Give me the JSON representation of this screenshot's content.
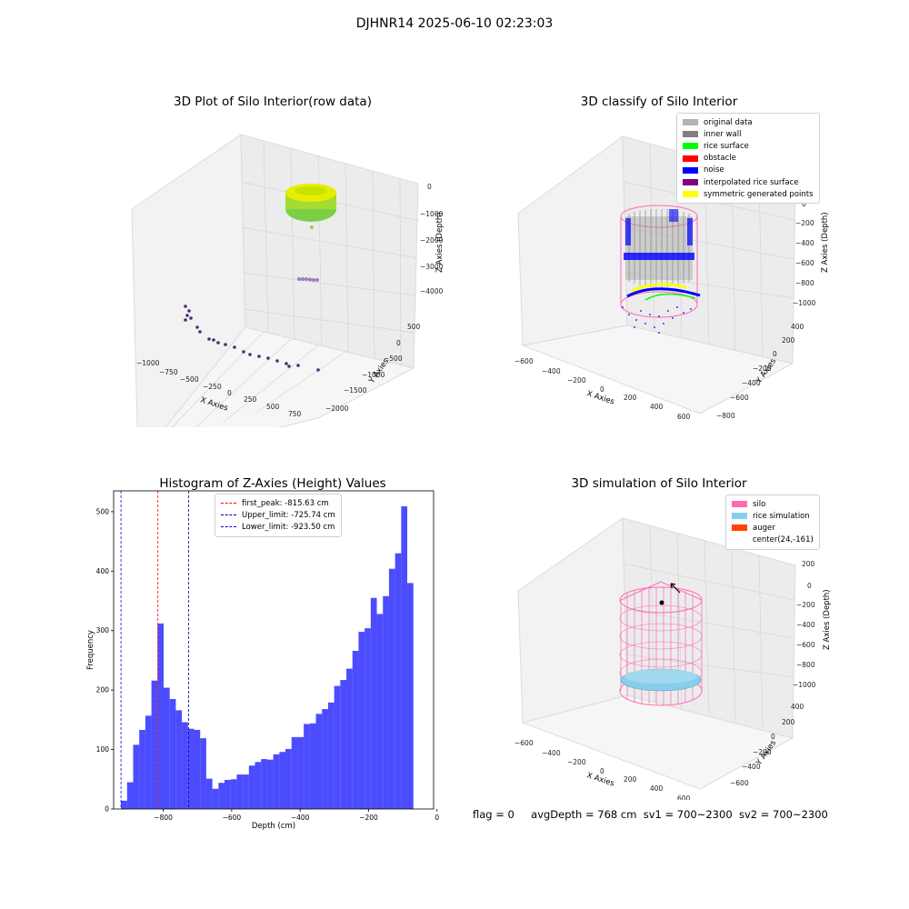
{
  "figure": {
    "suptitle": "DJHNR14 2025-06-10 02:23:03",
    "status": {
      "flag": "flag = 0",
      "avg_depth": "avgDepth = 768 cm",
      "sv1": "sv1 = 700~2300",
      "sv2": "sv2 = 700~2300"
    }
  },
  "panels": {
    "raw": {
      "title": "3D Plot of Silo Interior(row data)",
      "xlabel": "X Axies",
      "ylabel": "Y Axies",
      "zlabel": "Z Axies (Depth)",
      "xticks": [
        "−1000",
        "−750",
        "−500",
        "−250",
        "0",
        "250",
        "500",
        "750"
      ],
      "yticks": [
        "500",
        "0",
        "−500",
        "−1000",
        "−1500",
        "−2000"
      ],
      "zticks": [
        "0",
        "−1000",
        "−2000",
        "−3000",
        "−4000"
      ]
    },
    "classify": {
      "title": "3D classify of Silo Interior",
      "xlabel": "X Axies",
      "ylabel": "Y Axies",
      "zlabel": "Z Axies (Depth)",
      "xticks": [
        "−600",
        "−400",
        "−200",
        "0",
        "200",
        "400",
        "600"
      ],
      "yticks": [
        "400",
        "200",
        "0",
        "−200",
        "−400",
        "−600",
        "−800"
      ],
      "zticks": [
        "200",
        "0",
        "−200",
        "−400",
        "−600",
        "−800",
        "−1000"
      ],
      "legend": [
        {
          "label": "original data",
          "color": "#b3b3b3"
        },
        {
          "label": "inner wall",
          "color": "#808080"
        },
        {
          "label": "rice surface",
          "color": "#00ff00"
        },
        {
          "label": "obstacle",
          "color": "#ff0000"
        },
        {
          "label": "noise",
          "color": "#0000ff"
        },
        {
          "label": "interpolated rice surface",
          "color": "#800080"
        },
        {
          "label": "symmetric generated points",
          "color": "#ffff00"
        }
      ]
    },
    "simulation": {
      "title": "3D simulation of Silo Interior",
      "xlabel": "X Axies",
      "ylabel": "Y Axies",
      "zlabel": "Z Axies (Depth)",
      "xticks": [
        "−600",
        "−400",
        "−200",
        "0",
        "200",
        "400",
        "600"
      ],
      "yticks": [
        "400",
        "200",
        "0",
        "−200",
        "−400",
        "−600"
      ],
      "zticks": [
        "200",
        "0",
        "−200",
        "−400",
        "−600",
        "−800",
        "−1000"
      ],
      "legend": [
        {
          "label": "silo",
          "color": "#ff69b4"
        },
        {
          "label": "rice simulation",
          "color": "#87ceeb"
        },
        {
          "label": "auger",
          "color": "#ff4500"
        },
        {
          "label": "center(24,-161)",
          "color": ""
        }
      ]
    },
    "histogram": {
      "legend": [
        {
          "label": "first_peak: -815.63 cm",
          "color": "#ff0000"
        },
        {
          "label": "Upper_limit: -725.74 cm",
          "color": "#00008b"
        },
        {
          "label": "Lower_limit: -923.50 cm",
          "color": "#0000ff"
        }
      ]
    }
  },
  "chart_data": [
    {
      "type": "bar",
      "title": "Histogram of Z-Axies (Height) Values",
      "xlabel": "Depth (cm)",
      "ylabel": "Frequency",
      "color": "#0000ff",
      "xlim": [
        -945,
        -10
      ],
      "ylim": [
        0,
        535
      ],
      "xticks": [
        -800,
        -600,
        -400,
        -200,
        0
      ],
      "yticks": [
        0,
        100,
        200,
        300,
        400,
        500
      ],
      "bin_start": -923.5,
      "bin_width": 17.8,
      "values": [
        14,
        45,
        108,
        133,
        157,
        216,
        312,
        204,
        185,
        166,
        146,
        135,
        133,
        119,
        51,
        34,
        44,
        49,
        50,
        58,
        58,
        73,
        79,
        84,
        83,
        92,
        96,
        101,
        121,
        121,
        143,
        144,
        160,
        168,
        179,
        207,
        217,
        236,
        266,
        298,
        304,
        355,
        328,
        358,
        404,
        430,
        509,
        380
      ],
      "vlines": [
        {
          "x": -815.63,
          "color": "#ff0000"
        },
        {
          "x": -725.74,
          "color": "#00008b"
        },
        {
          "x": -923.5,
          "color": "#0000ff"
        }
      ],
      "legend_position": "upper center"
    }
  ]
}
